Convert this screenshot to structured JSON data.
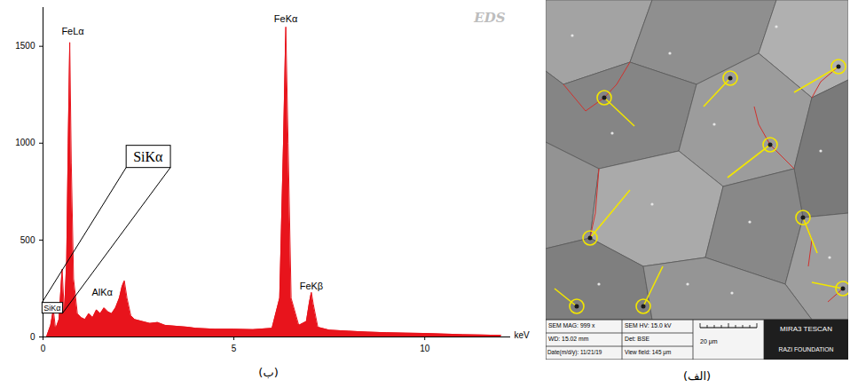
{
  "chart_data": {
    "type": "area",
    "caption": "(ب)",
    "watermark": "EDS",
    "x_label": "keV",
    "color": "#e8141c",
    "x": [
      0.1,
      0.2,
      0.27,
      0.33,
      0.42,
      0.5,
      0.56,
      0.62,
      0.66,
      0.7,
      0.74,
      0.8,
      0.9,
      1.0,
      1.1,
      1.2,
      1.3,
      1.4,
      1.5,
      1.6,
      1.7,
      1.8,
      1.9,
      2.0,
      2.07,
      2.13,
      2.2,
      2.3,
      2.4,
      2.6,
      2.8,
      3.0,
      3.2,
      3.5,
      3.8,
      4.0,
      4.5,
      5.0,
      5.5,
      6.0,
      6.2,
      6.3,
      6.36,
      6.42,
      6.5,
      6.7,
      6.9,
      6.98,
      7.03,
      7.08,
      7.2,
      7.5,
      8.0,
      8.5,
      9.0,
      9.5,
      10.0,
      10.5,
      11.0,
      11.5,
      12.0
    ],
    "values": [
      5,
      60,
      140,
      40,
      90,
      350,
      120,
      400,
      1000,
      1520,
      900,
      300,
      120,
      100,
      90,
      120,
      100,
      140,
      120,
      150,
      130,
      120,
      150,
      200,
      260,
      290,
      200,
      110,
      90,
      80,
      70,
      75,
      60,
      55,
      50,
      45,
      40,
      40,
      38,
      45,
      200,
      1000,
      1600,
      1000,
      200,
      60,
      80,
      180,
      230,
      170,
      50,
      35,
      30,
      25,
      22,
      20,
      18,
      15,
      12,
      10,
      8
    ],
    "xlim": [
      0,
      12.25
    ],
    "xticks": [
      0,
      5,
      10
    ],
    "ylim": [
      0,
      1700
    ],
    "yticks": [
      0,
      500,
      1000,
      1500
    ],
    "grid": false,
    "annotations": [
      {
        "text": "FeLα",
        "x": 0.78,
        "y": 1560
      },
      {
        "text": "FeKα",
        "x": 6.36,
        "y": 1625
      },
      {
        "text": "FeKβ",
        "x": 7.03,
        "y": 245
      },
      {
        "text": "AlKα",
        "x": 1.55,
        "y": 215
      }
    ],
    "callout": {
      "text": "SiKα",
      "at": {
        "x": 0.02,
        "y": 150
      },
      "zoom": {
        "x": 2.75,
        "y": 930
      }
    }
  },
  "image": {
    "caption": "(الف)",
    "info_bar": {
      "mag": "SEM MAG: 999 x",
      "hv": "SEM HV: 15.0 kV",
      "wd": "WD: 15.02 mm",
      "det": "Det: BSE",
      "date": "Date(m/d/y): 11/21/19",
      "view_field": "View field: 145 μm",
      "scale_bar": "20 μm",
      "brand": "MIRA3 TESCAN",
      "lab": "RAZI FOUNDATION"
    }
  }
}
